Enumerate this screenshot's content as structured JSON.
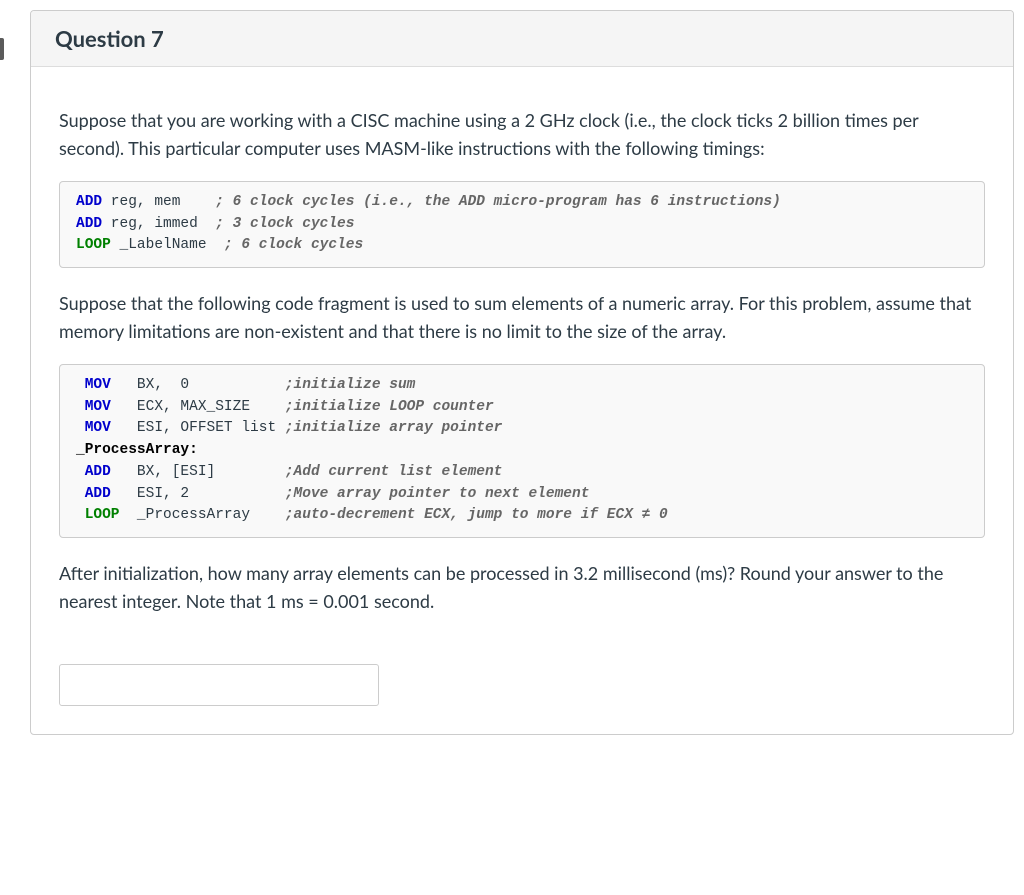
{
  "header": {
    "title": "Question 7"
  },
  "body": {
    "para1": "Suppose that you are working with a CISC machine using a 2 GHz clock (i.e., the clock ticks 2 billion times per second). This particular computer uses MASM-like instructions with the following timings:",
    "code1": {
      "l1_inst": "ADD",
      "l1_args": " reg, mem    ",
      "l1_cmt": "; 6 clock cycles (i.e., the ADD micro-program has 6 instructions)",
      "l2_inst": "ADD",
      "l2_args": " reg, immed  ",
      "l2_cmt": "; 3 clock cycles",
      "l3_inst": "LOOP",
      "l3_args": " _LabelName  ",
      "l3_cmt": "; 6 clock cycles"
    },
    "para2": "Suppose that the following code fragment is used to sum elements of a numeric array. For this problem, assume that memory limitations are non-existent and that there is no limit to the size of the array.",
    "code2": {
      "l1_inst": "MOV",
      "l1_args": "   BX,  0           ",
      "l1_cmt": ";initialize sum",
      "l2_inst": "MOV",
      "l2_args": "   ECX, MAX_SIZE    ",
      "l2_cmt": ";initialize LOOP counter",
      "l3_inst": "MOV",
      "l3_args": "   ESI, OFFSET list ",
      "l3_cmt": ";initialize array pointer",
      "l4_lbl": "_ProcessArray:",
      "l5_inst": "ADD",
      "l5_args": "   BX, [ESI]        ",
      "l5_cmt": ";Add current list element",
      "l6_inst": "ADD",
      "l6_args": "   ESI, 2           ",
      "l6_cmt": ";Move array pointer to next element",
      "l7_inst": "LOOP",
      "l7_args": "  _ProcessArray    ",
      "l7_cmt": ";auto-decrement ECX, jump to more if ECX ≠ 0"
    },
    "para3": "After initialization, how many array elements can be processed in 3.2 millisecond (ms)? Round your answer to the nearest integer. Note that 1 ms = 0.001 second."
  }
}
